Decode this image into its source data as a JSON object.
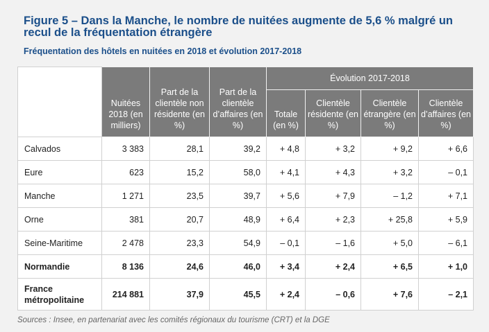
{
  "title": "Figure 5 – Dans la Manche, le nombre de nuitées augmente de 5,6 % malgré un recul de la fréquentation étrangère",
  "subtitle": "Fréquentation des hôtels en nuitées en 2018 et évolution 2017-2018",
  "table": {
    "headers": {
      "nuitees": "Nuitées 2018 (en milliers)",
      "part_non_resid": "Part de la clientèle non résidente (en %)",
      "part_affaires": "Part de la clientèle d’affaires (en %)",
      "evolution_group": "Évolution 2017-2018",
      "totale": "Totale (en %)",
      "cl_resid": "Clientèle résidente (en %)",
      "cl_etr": "Clientèle étrangère (en %)",
      "cl_aff": "Clientèle d’affaires (en %)"
    },
    "rows": [
      [
        "Calvados",
        "3 383",
        "28,1",
        "39,2",
        "+ 4,8",
        "+ 3,2",
        "+ 9,2",
        "+ 6,6"
      ],
      [
        "Eure",
        "623",
        "15,2",
        "58,0",
        "+ 4,1",
        "+ 4,3",
        "+ 3,2",
        "– 0,1"
      ],
      [
        "Manche",
        "1 271",
        "23,5",
        "39,7",
        "+ 5,6",
        "+ 7,9",
        "– 1,2",
        "+ 7,1"
      ],
      [
        "Orne",
        "381",
        "20,7",
        "48,9",
        "+ 6,4",
        "+ 2,3",
        "+ 25,8",
        "+ 5,9"
      ],
      [
        "Seine-Maritime",
        "2 478",
        "23,3",
        "54,9",
        "– 0,1",
        "– 1,6",
        "+ 5,0",
        "– 6,1"
      ],
      [
        "Normandie",
        "8 136",
        "24,6",
        "46,0",
        "+ 3,4",
        "+ 2,4",
        "+ 6,5",
        "+ 1,0"
      ],
      [
        "France métropolitaine",
        "214 881",
        "37,9",
        "45,5",
        "+ 2,4",
        "– 0,6",
        "+ 7,6",
        "– 2,1"
      ]
    ]
  },
  "source": "Sources : Insee, en partenariat avec les comités régionaux du tourisme (CRT) et la DGE"
}
